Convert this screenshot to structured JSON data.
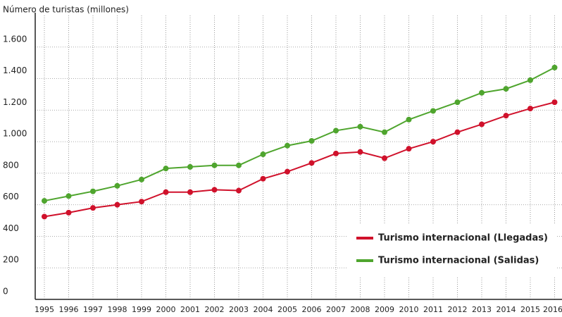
{
  "chart_data": {
    "type": "line",
    "y_axis_label": "Número de turistas (millones)",
    "categories": [
      "1995",
      "1996",
      "1997",
      "1998",
      "1999",
      "2000",
      "2001",
      "2002",
      "2003",
      "2004",
      "2005",
      "2006",
      "2007",
      "2008",
      "2009",
      "2010",
      "2011",
      "2012",
      "2013",
      "2014",
      "2015",
      "2016"
    ],
    "series": [
      {
        "name": "Turismo internacional (Llegadas)",
        "color": "#d0112b",
        "values": [
          525,
          550,
          580,
          600,
          620,
          680,
          680,
          695,
          690,
          765,
          810,
          865,
          925,
          935,
          895,
          955,
          1000,
          1060,
          1110,
          1165,
          1210,
          1250
        ]
      },
      {
        "name": "Turismo internacional (Salidas)",
        "color": "#4fa52e",
        "values": [
          625,
          655,
          685,
          720,
          760,
          830,
          840,
          850,
          850,
          920,
          975,
          1005,
          1070,
          1095,
          1060,
          1140,
          1195,
          1250,
          1310,
          1335,
          1390,
          1470
        ]
      }
    ],
    "ylim": [
      0,
      1800
    ],
    "yticks": [
      0,
      200,
      400,
      600,
      800,
      {
        "value": 1000,
        "label": "1.000"
      },
      {
        "value": 1200,
        "label": "1.200"
      },
      {
        "value": 1400,
        "label": "1.400"
      },
      {
        "value": 1600,
        "label": "1.600"
      }
    ],
    "grid": true,
    "legend": "lower right"
  }
}
